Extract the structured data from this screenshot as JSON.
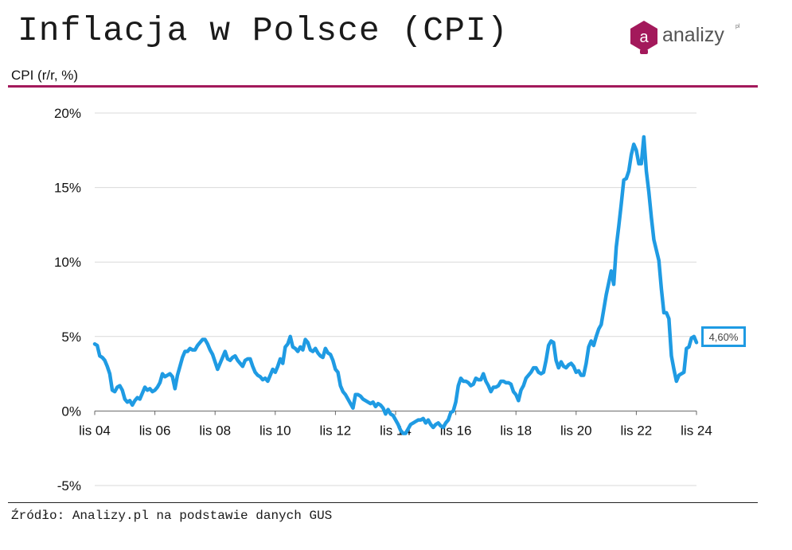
{
  "header": {
    "title": "Inflacja w Polsce (CPI)",
    "unit_label": "CPI (r/r, %)",
    "logo_letter": "a",
    "logo_word": "analizy",
    "logo_suffix": "pl"
  },
  "footer": {
    "source": "Źródło: Analizy.pl na podstawie danych GUS"
  },
  "colors": {
    "accent": "#a3195b",
    "series": "#1f9be3",
    "logo": "#a3195b"
  },
  "chart_data": {
    "type": "line",
    "title": "Inflacja w Polsce (CPI)",
    "ylabel": "CPI (r/r, %)",
    "xlabel": "",
    "ylim": [
      -5,
      20
    ],
    "yticks": [
      -5,
      0,
      5,
      10,
      15,
      20
    ],
    "ytick_labels": [
      "-5%",
      "0%",
      "5%",
      "10%",
      "15%",
      "20%"
    ],
    "x_start": "2004-11",
    "x_end": "2024-11",
    "xtick_labels": [
      "lis 04",
      "lis 06",
      "lis 08",
      "lis 10",
      "lis 12",
      "lis 14",
      "lis 16",
      "lis 18",
      "lis 20",
      "lis 22",
      "lis 24"
    ],
    "grid": true,
    "last_value_label": "4,60%",
    "series": [
      {
        "values": [
          4.5,
          4.4,
          3.7,
          3.6,
          3.4,
          3.0,
          2.5,
          1.4,
          1.3,
          1.6,
          1.7,
          1.4,
          0.8,
          0.6,
          0.7,
          0.4,
          0.7,
          0.9,
          0.8,
          1.2,
          1.6,
          1.4,
          1.5,
          1.3,
          1.4,
          1.6,
          1.9,
          2.5,
          2.3,
          2.4,
          2.5,
          2.3,
          1.5,
          2.4,
          3.0,
          3.6,
          4.0,
          4.0,
          4.2,
          4.1,
          4.1,
          4.4,
          4.6,
          4.8,
          4.8,
          4.5,
          4.1,
          3.8,
          3.3,
          2.8,
          3.2,
          3.6,
          4.0,
          3.5,
          3.4,
          3.6,
          3.7,
          3.4,
          3.2,
          3.0,
          3.4,
          3.5,
          3.5,
          3.0,
          2.6,
          2.4,
          2.3,
          2.1,
          2.2,
          2.0,
          2.4,
          2.8,
          2.6,
          3.0,
          3.5,
          3.2,
          4.3,
          4.5,
          5.0,
          4.3,
          4.2,
          4.0,
          4.3,
          4.1,
          4.8,
          4.6,
          4.1,
          4.0,
          4.2,
          3.9,
          3.7,
          3.6,
          4.2,
          3.9,
          3.8,
          3.4,
          2.8,
          2.6,
          1.7,
          1.3,
          1.1,
          0.8,
          0.5,
          0.2,
          1.1,
          1.1,
          1.0,
          0.8,
          0.7,
          0.6,
          0.5,
          0.6,
          0.3,
          0.5,
          0.4,
          0.2,
          -0.2,
          0.1,
          -0.2,
          -0.3,
          -0.6,
          -0.9,
          -1.3,
          -1.5,
          -1.5,
          -1.2,
          -0.9,
          -0.8,
          -0.7,
          -0.6,
          -0.6,
          -0.5,
          -0.8,
          -0.6,
          -0.9,
          -1.1,
          -0.9,
          -0.8,
          -1.0,
          -1.1,
          -0.8,
          -0.6,
          -0.1,
          0.0,
          0.6,
          1.7,
          2.2,
          2.0,
          2.0,
          1.9,
          1.7,
          1.8,
          2.2,
          2.1,
          2.1,
          2.5,
          2.0,
          1.7,
          1.3,
          1.6,
          1.6,
          1.7,
          2.0,
          2.0,
          1.9,
          1.9,
          1.8,
          1.3,
          1.1,
          0.7,
          1.4,
          1.7,
          2.2,
          2.4,
          2.6,
          2.9,
          2.9,
          2.6,
          2.5,
          2.6,
          3.4,
          4.4,
          4.7,
          4.6,
          3.4,
          2.9,
          3.3,
          3.0,
          2.9,
          3.1,
          3.2,
          3.0,
          2.6,
          2.7,
          2.4,
          2.4,
          3.2,
          4.3,
          4.7,
          4.4,
          5.0,
          5.5,
          5.8,
          6.8,
          7.8,
          8.6,
          9.4,
          8.5,
          11.0,
          12.4,
          13.9,
          15.5,
          15.6,
          16.1,
          17.2,
          17.9,
          17.5,
          16.6,
          16.6,
          18.4,
          16.1,
          14.7,
          13.0,
          11.5,
          10.8,
          10.1,
          8.2,
          6.6,
          6.6,
          6.2,
          3.7,
          2.8,
          2.0,
          2.4,
          2.5,
          2.6,
          4.2,
          4.3,
          4.9,
          5.0,
          4.6
        ]
      }
    ]
  }
}
